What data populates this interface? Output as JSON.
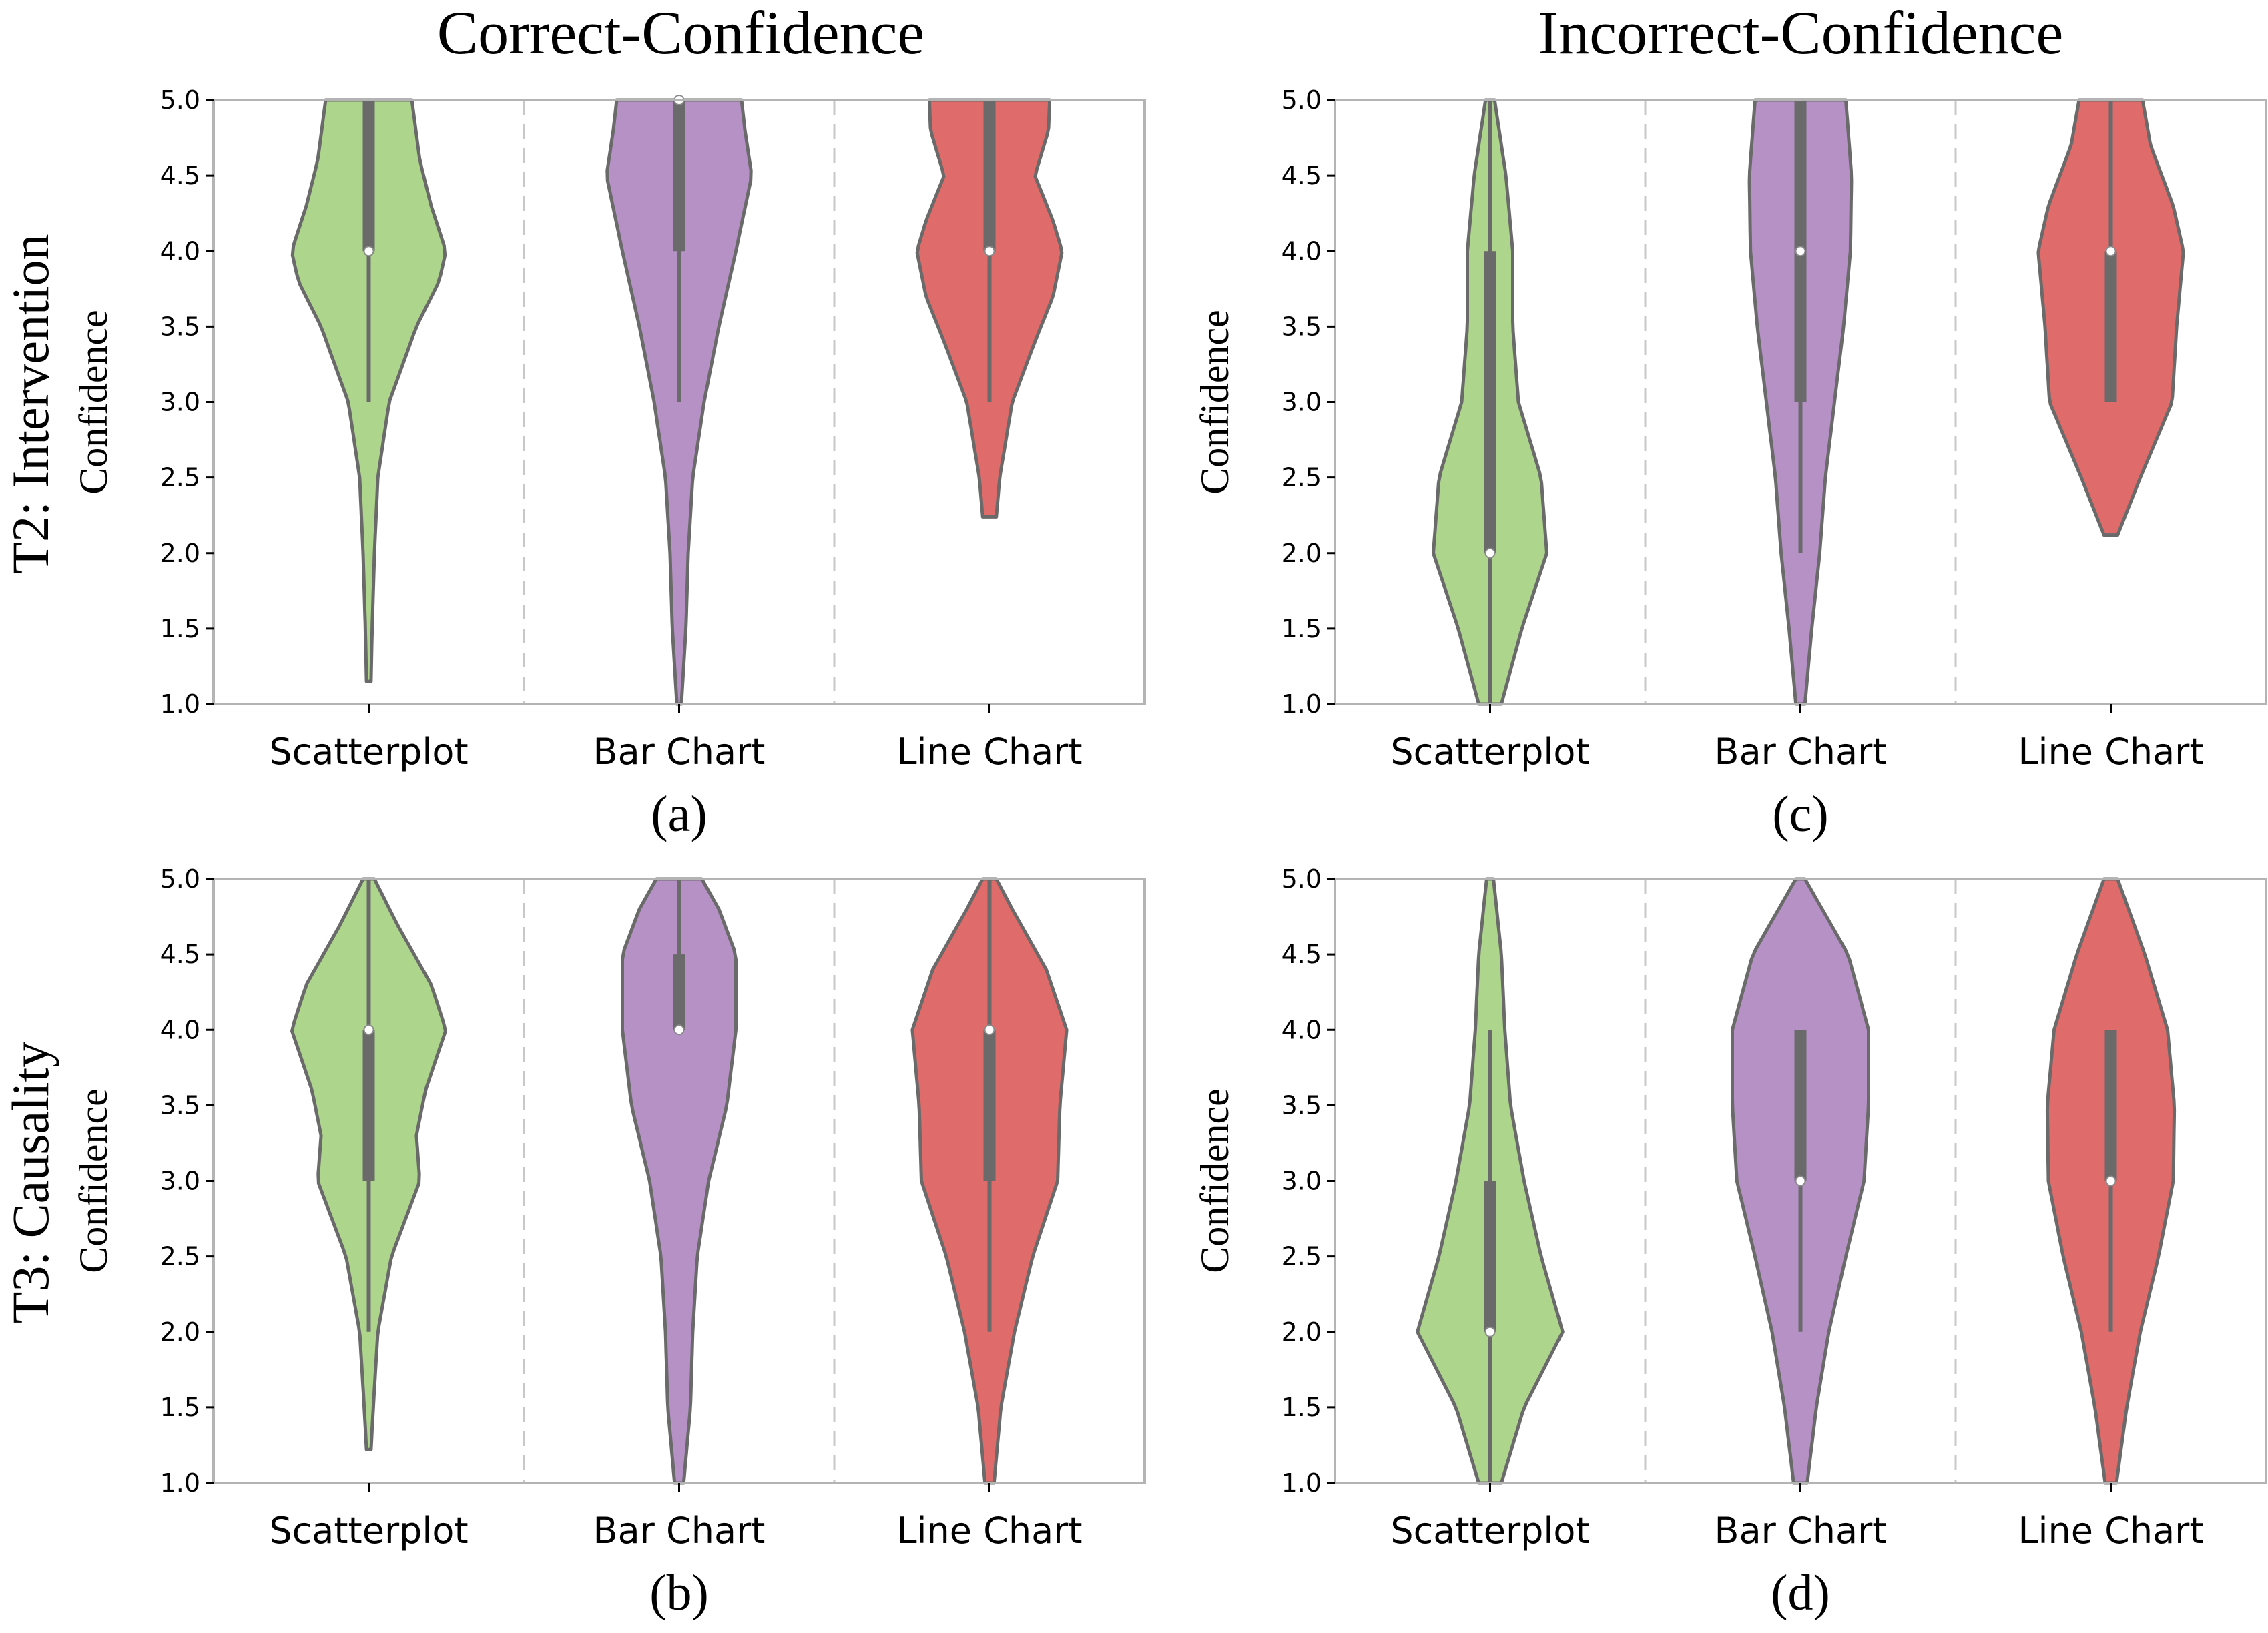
{
  "figure": {
    "column_titles": [
      "Correct-Confidence",
      "Incorrect-Confidence"
    ],
    "row_titles": [
      "T2: Intervention",
      "T3: Causality"
    ]
  },
  "colors": {
    "Scatterplot": "#aed58c",
    "Bar Chart": "#b591c6",
    "Line Chart": "#df6b6a"
  },
  "chart_data": [
    {
      "type": "violin",
      "panel": "(a)",
      "row": "T2: Intervention",
      "column": "Correct-Confidence",
      "ylabel": "Confidence",
      "ylim": [
        1.0,
        5.0
      ],
      "yticks": [
        "1.0",
        "1.5",
        "2.0",
        "2.5",
        "3.0",
        "3.5",
        "4.0",
        "4.5",
        "5.0"
      ],
      "categories": [
        "Scatterplot",
        "Bar Chart",
        "Line Chart"
      ],
      "series": [
        {
          "name": "Scatterplot",
          "median": 4.0,
          "q1": 4.0,
          "q3": 5.0,
          "whisker_low": 3.0,
          "whisker_high": 5.0,
          "density": [
            [
              1.15,
              0.02
            ],
            [
              1.5,
              0.03
            ],
            [
              2.0,
              0.05
            ],
            [
              2.5,
              0.08
            ],
            [
              3.0,
              0.18
            ],
            [
              3.5,
              0.42
            ],
            [
              3.8,
              0.62
            ],
            [
              4.0,
              0.68
            ],
            [
              4.3,
              0.55
            ],
            [
              4.6,
              0.45
            ],
            [
              5.0,
              0.38
            ]
          ]
        },
        {
          "name": "Bar Chart",
          "median": 5.0,
          "q1": 4.0,
          "q3": 5.0,
          "whisker_low": 3.0,
          "whisker_high": 5.0,
          "density": [
            [
              1.0,
              0.02
            ],
            [
              1.5,
              0.06
            ],
            [
              2.0,
              0.08
            ],
            [
              2.5,
              0.12
            ],
            [
              3.0,
              0.22
            ],
            [
              3.5,
              0.35
            ],
            [
              4.0,
              0.5
            ],
            [
              4.5,
              0.64
            ],
            [
              4.8,
              0.58
            ],
            [
              5.0,
              0.55
            ]
          ]
        },
        {
          "name": "Line Chart",
          "median": 4.0,
          "q1": 4.0,
          "q3": 5.0,
          "whisker_low": 3.0,
          "whisker_high": 5.0,
          "density": [
            [
              2.24,
              0.06
            ],
            [
              2.5,
              0.09
            ],
            [
              3.0,
              0.2
            ],
            [
              3.4,
              0.4
            ],
            [
              3.7,
              0.56
            ],
            [
              4.0,
              0.64
            ],
            [
              4.2,
              0.56
            ],
            [
              4.5,
              0.4
            ],
            [
              4.8,
              0.52
            ],
            [
              5.0,
              0.53
            ]
          ]
        }
      ]
    },
    {
      "type": "violin",
      "panel": "(b)",
      "row": "T3: Causality",
      "column": "Correct-Confidence",
      "ylabel": "Confidence",
      "ylim": [
        1.0,
        5.0
      ],
      "yticks": [
        "1.0",
        "1.5",
        "2.0",
        "2.5",
        "3.0",
        "3.5",
        "4.0",
        "4.5",
        "5.0"
      ],
      "categories": [
        "Scatterplot",
        "Bar Chart",
        "Line Chart"
      ],
      "series": [
        {
          "name": "Scatterplot",
          "median": 4.0,
          "q1": 3.0,
          "q3": 4.0,
          "whisker_low": 2.0,
          "whisker_high": 5.0,
          "density": [
            [
              1.22,
              0.02
            ],
            [
              1.5,
              0.04
            ],
            [
              2.0,
              0.08
            ],
            [
              2.5,
              0.2
            ],
            [
              3.0,
              0.45
            ],
            [
              3.3,
              0.42
            ],
            [
              3.6,
              0.5
            ],
            [
              4.0,
              0.68
            ],
            [
              4.3,
              0.55
            ],
            [
              4.7,
              0.25
            ],
            [
              5.0,
              0.05
            ]
          ]
        },
        {
          "name": "Bar Chart",
          "median": 4.0,
          "q1": 4.0,
          "q3": 4.5,
          "whisker_low": 4.0,
          "whisker_high": 5.0,
          "density": [
            [
              1.0,
              0.04
            ],
            [
              1.5,
              0.1
            ],
            [
              2.0,
              0.12
            ],
            [
              2.5,
              0.16
            ],
            [
              3.0,
              0.26
            ],
            [
              3.5,
              0.42
            ],
            [
              4.0,
              0.5
            ],
            [
              4.5,
              0.5
            ],
            [
              4.8,
              0.35
            ],
            [
              5.0,
              0.2
            ]
          ]
        },
        {
          "name": "Line Chart",
          "median": 4.0,
          "q1": 3.0,
          "q3": 4.0,
          "whisker_low": 2.0,
          "whisker_high": 5.0,
          "density": [
            [
              1.0,
              0.04
            ],
            [
              1.5,
              0.1
            ],
            [
              2.0,
              0.22
            ],
            [
              2.5,
              0.38
            ],
            [
              3.0,
              0.6
            ],
            [
              3.5,
              0.62
            ],
            [
              4.0,
              0.68
            ],
            [
              4.4,
              0.5
            ],
            [
              4.8,
              0.2
            ],
            [
              5.0,
              0.06
            ]
          ]
        }
      ]
    },
    {
      "type": "violin",
      "panel": "(c)",
      "row": "T2: Intervention",
      "column": "Incorrect-Confidence",
      "ylabel": "Confidence",
      "ylim": [
        1.0,
        5.0
      ],
      "yticks": [
        "1.0",
        "1.5",
        "2.0",
        "2.5",
        "3.0",
        "3.5",
        "4.0",
        "4.5",
        "5.0"
      ],
      "categories": [
        "Scatterplot",
        "Bar Chart",
        "Line Chart"
      ],
      "series": [
        {
          "name": "Scatterplot",
          "median": 2.0,
          "q1": 2.0,
          "q3": 4.0,
          "whisker_low": 1.0,
          "whisker_high": 5.0,
          "density": [
            [
              1.0,
              0.1
            ],
            [
              1.5,
              0.28
            ],
            [
              2.0,
              0.5
            ],
            [
              2.5,
              0.45
            ],
            [
              3.0,
              0.25
            ],
            [
              3.5,
              0.2
            ],
            [
              4.0,
              0.2
            ],
            [
              4.5,
              0.14
            ],
            [
              5.0,
              0.04
            ]
          ]
        },
        {
          "name": "Bar Chart",
          "median": 4.0,
          "q1": 3.0,
          "q3": 5.0,
          "whisker_low": 2.0,
          "whisker_high": 5.0,
          "density": [
            [
              1.0,
              0.04
            ],
            [
              1.5,
              0.1
            ],
            [
              2.0,
              0.17
            ],
            [
              2.5,
              0.22
            ],
            [
              3.0,
              0.3
            ],
            [
              3.5,
              0.38
            ],
            [
              4.0,
              0.44
            ],
            [
              4.5,
              0.45
            ],
            [
              5.0,
              0.4
            ]
          ]
        },
        {
          "name": "Line Chart",
          "median": 4.0,
          "q1": 3.0,
          "q3": 4.0,
          "whisker_low": 3.0,
          "whisker_high": 5.0,
          "density": [
            [
              2.12,
              0.06
            ],
            [
              2.5,
              0.26
            ],
            [
              3.0,
              0.54
            ],
            [
              3.5,
              0.58
            ],
            [
              4.0,
              0.64
            ],
            [
              4.3,
              0.55
            ],
            [
              4.7,
              0.35
            ],
            [
              5.0,
              0.28
            ]
          ]
        }
      ]
    },
    {
      "type": "violin",
      "panel": "(d)",
      "row": "T3: Causality",
      "column": "Incorrect-Confidence",
      "ylabel": "Confidence",
      "ylim": [
        1.0,
        5.0
      ],
      "yticks": [
        "1.0",
        "1.5",
        "2.0",
        "2.5",
        "3.0",
        "3.5",
        "4.0",
        "4.5",
        "5.0"
      ],
      "categories": [
        "Scatterplot",
        "Bar Chart",
        "Line Chart"
      ],
      "series": [
        {
          "name": "Scatterplot",
          "median": 2.0,
          "q1": 2.0,
          "q3": 3.0,
          "whisker_low": 1.0,
          "whisker_high": 4.0,
          "density": [
            [
              1.0,
              0.1
            ],
            [
              1.5,
              0.3
            ],
            [
              2.0,
              0.64
            ],
            [
              2.5,
              0.45
            ],
            [
              3.0,
              0.3
            ],
            [
              3.5,
              0.18
            ],
            [
              4.0,
              0.13
            ],
            [
              4.5,
              0.1
            ],
            [
              5.0,
              0.03
            ]
          ]
        },
        {
          "name": "Bar Chart",
          "median": 3.0,
          "q1": 3.0,
          "q3": 4.0,
          "whisker_low": 2.0,
          "whisker_high": 4.0,
          "density": [
            [
              1.0,
              0.06
            ],
            [
              1.5,
              0.14
            ],
            [
              2.0,
              0.25
            ],
            [
              2.5,
              0.4
            ],
            [
              3.0,
              0.56
            ],
            [
              3.5,
              0.6
            ],
            [
              4.0,
              0.6
            ],
            [
              4.5,
              0.42
            ],
            [
              5.0,
              0.04
            ]
          ]
        },
        {
          "name": "Line Chart",
          "median": 3.0,
          "q1": 3.0,
          "q3": 4.0,
          "whisker_low": 2.0,
          "whisker_high": 4.0,
          "density": [
            [
              1.0,
              0.05
            ],
            [
              1.5,
              0.14
            ],
            [
              2.0,
              0.26
            ],
            [
              2.5,
              0.42
            ],
            [
              3.0,
              0.55
            ],
            [
              3.5,
              0.56
            ],
            [
              4.0,
              0.5
            ],
            [
              4.5,
              0.3
            ],
            [
              5.0,
              0.06
            ]
          ]
        }
      ]
    }
  ]
}
